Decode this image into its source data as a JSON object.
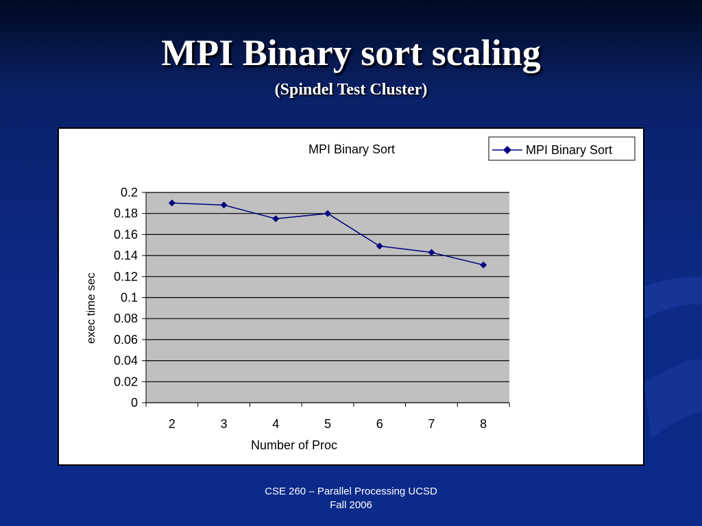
{
  "slide": {
    "title": "MPI Binary sort scaling",
    "subtitle": "(Spindel Test Cluster)",
    "footer_line1": "CSE 260 – Parallel Processing  UCSD",
    "footer_line2": "Fall 2006"
  },
  "colors": {
    "plot_background": "#c0c0c0",
    "series_color": "#000080",
    "gridline": "#000000"
  },
  "chart_data": {
    "type": "line",
    "title": "MPI Binary Sort",
    "xlabel": "Number of Proc",
    "ylabel": "exec time sec",
    "categories": [
      "2",
      "3",
      "4",
      "5",
      "6",
      "7",
      "8"
    ],
    "series": [
      {
        "name": "MPI Binary Sort",
        "values": [
          0.19,
          0.188,
          0.175,
          0.18,
          0.149,
          0.143,
          0.131
        ],
        "marker": "diamond"
      }
    ],
    "ylim": [
      0,
      0.2
    ],
    "yticks": [
      "0",
      "0.02",
      "0.04",
      "0.06",
      "0.08",
      "0.1",
      "0.12",
      "0.14",
      "0.16",
      "0.18",
      "0.2"
    ],
    "grid": "horizontal",
    "legend": "top-right"
  }
}
